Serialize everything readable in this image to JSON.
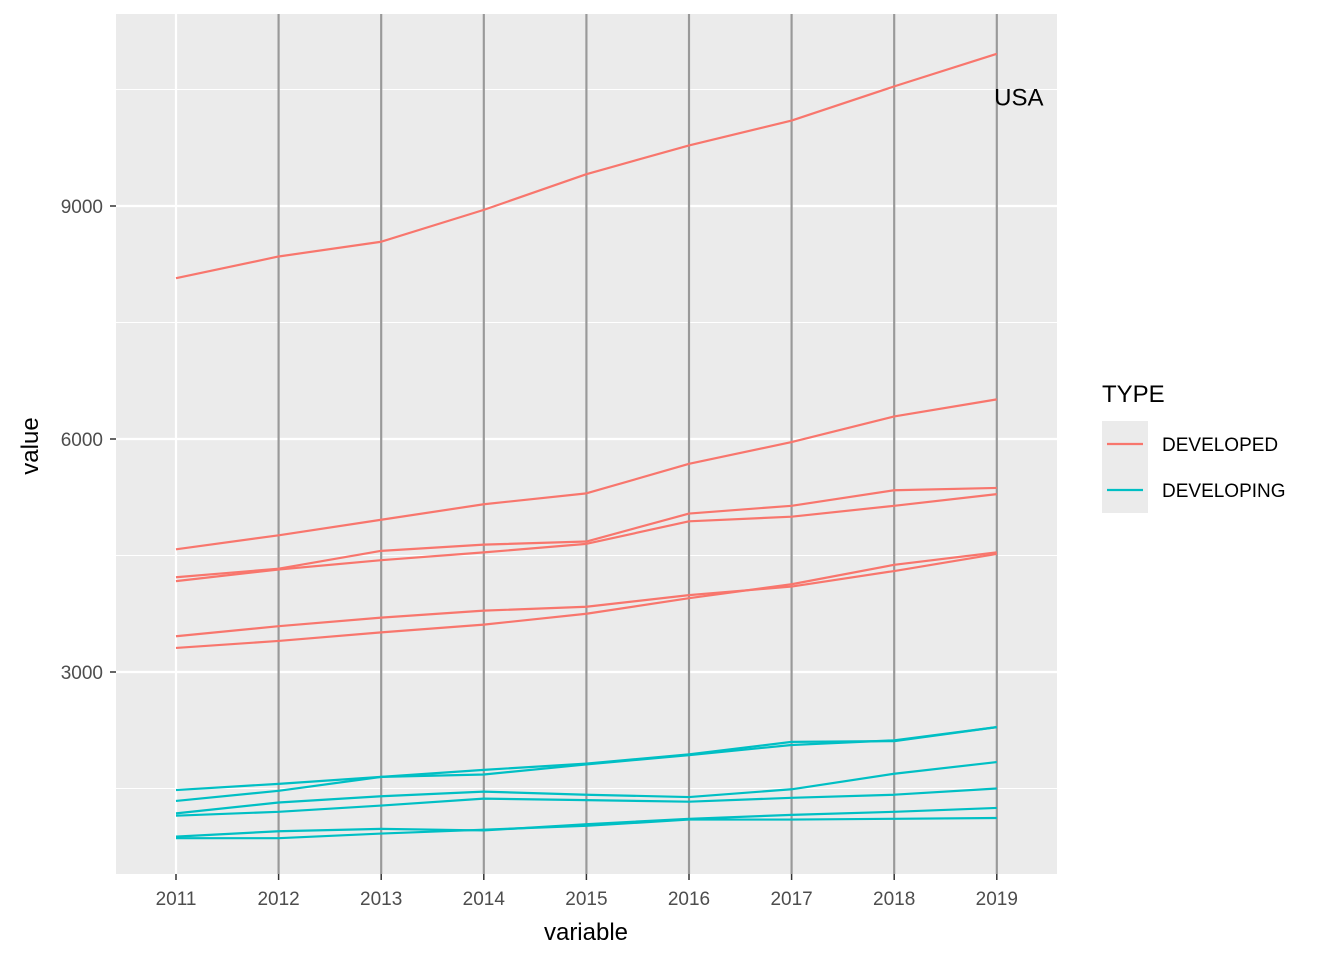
{
  "chart_data": {
    "type": "line",
    "x": [
      "2011",
      "2012",
      "2013",
      "2014",
      "2015",
      "2016",
      "2017",
      "2018",
      "2019"
    ],
    "xlabel": "variable",
    "ylabel": "value",
    "ylim": [
      400,
      11500
    ],
    "yticks": [
      3000,
      6000,
      9000
    ],
    "grid": true,
    "vlines": [
      "2012",
      "2013",
      "2014",
      "2015",
      "2016",
      "2017",
      "2018",
      "2019"
    ],
    "legend": {
      "title": "TYPE",
      "placement": "right",
      "entries": [
        {
          "label": "DEVELOPED",
          "color": "#f8766d"
        },
        {
          "label": "DEVELOPING",
          "color": "#00bfc4"
        }
      ]
    },
    "annotations": [
      {
        "text": "USA",
        "x": "2019",
        "y": 10400
      }
    ],
    "series": [
      {
        "group": "DEVELOPED",
        "values": [
          8070,
          8350,
          8540,
          8950,
          9410,
          9780,
          10100,
          10540,
          10960
        ]
      },
      {
        "group": "DEVELOPED",
        "values": [
          4580,
          4760,
          4960,
          5160,
          5300,
          5680,
          5960,
          6290,
          6510
        ]
      },
      {
        "group": "DEVELOPED",
        "values": [
          4220,
          4330,
          4560,
          4640,
          4680,
          5040,
          5140,
          5340,
          5370
        ]
      },
      {
        "group": "DEVELOPED",
        "values": [
          4170,
          4320,
          4440,
          4540,
          4650,
          4940,
          5000,
          5140,
          5290
        ]
      },
      {
        "group": "DEVELOPED",
        "values": [
          3460,
          3590,
          3700,
          3790,
          3840,
          3990,
          4100,
          4300,
          4520
        ]
      },
      {
        "group": "DEVELOPED",
        "values": [
          3310,
          3400,
          3510,
          3610,
          3750,
          3950,
          4130,
          4380,
          4540
        ]
      },
      {
        "group": "DEVELOPING",
        "values": [
          1480,
          1560,
          1650,
          1740,
          1820,
          1940,
          2100,
          2110,
          2290
        ]
      },
      {
        "group": "DEVELOPING",
        "values": [
          1340,
          1470,
          1650,
          1680,
          1810,
          1930,
          2060,
          2120,
          2290
        ]
      },
      {
        "group": "DEVELOPING",
        "values": [
          1180,
          1320,
          1400,
          1460,
          1420,
          1390,
          1490,
          1690,
          1840
        ]
      },
      {
        "group": "DEVELOPING",
        "values": [
          1150,
          1200,
          1280,
          1370,
          1350,
          1330,
          1380,
          1420,
          1500
        ]
      },
      {
        "group": "DEVELOPING",
        "values": [
          880,
          950,
          980,
          960,
          1040,
          1110,
          1160,
          1200,
          1250
        ]
      },
      {
        "group": "DEVELOPING",
        "values": [
          860,
          860,
          920,
          970,
          1020,
          1100,
          1100,
          1110,
          1120
        ]
      }
    ]
  }
}
